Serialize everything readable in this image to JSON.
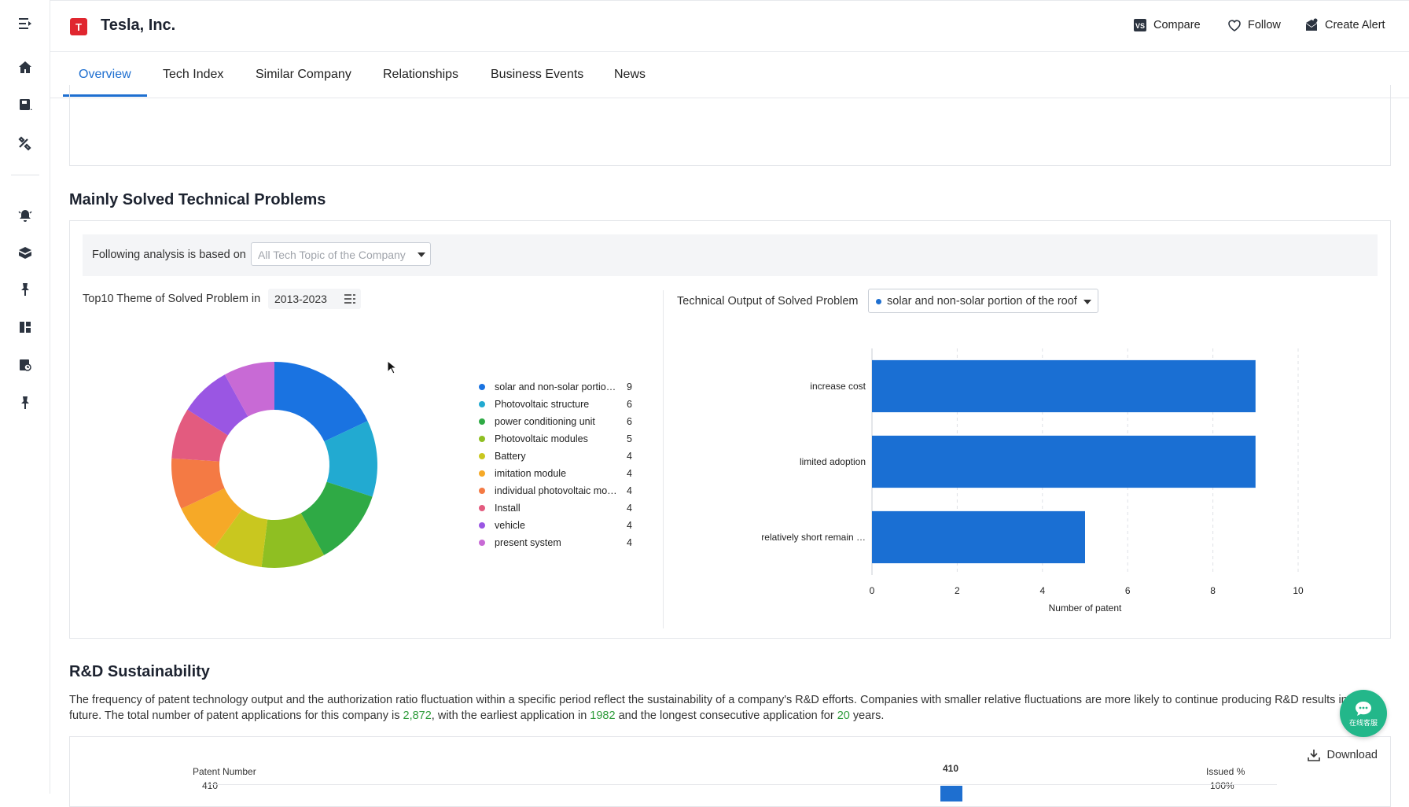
{
  "header": {
    "logo_letter": "T",
    "company": "Tesla, Inc.",
    "compare": "Compare",
    "follow": "Follow",
    "create_alert": "Create Alert"
  },
  "tabs": [
    {
      "label": "Overview",
      "active": true
    },
    {
      "label": "Tech Index"
    },
    {
      "label": "Similar Company"
    },
    {
      "label": "Relationships"
    },
    {
      "label": "Business Events"
    },
    {
      "label": "News"
    }
  ],
  "sidebar": {
    "icons": [
      "menu-collapse-icon",
      "home-icon",
      "book-icon",
      "tools-icon",
      "alert-bell-icon",
      "package-icon",
      "pin-icon",
      "dashboard-icon",
      "report-icon",
      "pin-icon"
    ]
  },
  "problems_section": {
    "title": "Mainly Solved Technical Problems",
    "filter_label": "Following analysis is based on",
    "filter_placeholder": "All Tech Topic of the Company",
    "pie_title": "Top10 Theme of Solved Problem in",
    "year_range": "2013-2023",
    "bar_title": "Technical Output of Solved Problem",
    "topic_selected": "solar and non-solar portion of the roof"
  },
  "rd_section": {
    "title": "R&D Sustainability",
    "desc_part1": "The frequency of patent technology output and the authorization ratio fluctuation within a specific period reflect the sustainability of a company's R&D efforts. Companies with smaller relative fluctuations are more likely to continue producing R&D results in the future. The total number of patent applications for this company is ",
    "total_patents": "2,872",
    "desc_part2": ", with the earliest application in ",
    "earliest_year": "1982",
    "desc_part3": " and the longest consecutive application for ",
    "consecutive_years": "20",
    "desc_part4": " years.",
    "download": "Download",
    "left_axis_title": "Patent Number",
    "left_axis_top": "410",
    "right_axis_title": "Issued %",
    "right_axis_top": "100%",
    "peak_label": "410"
  },
  "chat": {
    "label": "在线客服"
  },
  "colors": {
    "accent": "#1e6fd0",
    "highlight": "#2d9b3a",
    "brand": "#e0262f"
  },
  "chart_data": [
    {
      "type": "pie",
      "title": "Top10 Theme of Solved Problem in 2013-2023",
      "legend_position": "right",
      "categories": [
        "solar and non-solar portion…",
        "Photovoltaic structure",
        "power conditioning unit",
        "Photovoltaic modules",
        "Battery",
        "imitation module",
        "individual photovoltaic mod…",
        "Install",
        "vehicle",
        "present system"
      ],
      "values": [
        9,
        6,
        6,
        5,
        4,
        4,
        4,
        4,
        4,
        4
      ],
      "colors": [
        "#1a73e1",
        "#22aad1",
        "#2faa45",
        "#8fbf22",
        "#c9c71f",
        "#f6a927",
        "#f47a44",
        "#e35b7f",
        "#9a56e3",
        "#c86ad5"
      ]
    },
    {
      "type": "bar",
      "orientation": "horizontal",
      "title": "Technical Output of Solved Problem",
      "categories": [
        "increase cost",
        "limited adoption",
        "relatively short remain …"
      ],
      "values": [
        9,
        9,
        5
      ],
      "xlabel": "Number of patent",
      "ylabel": "",
      "xlim": [
        0,
        10
      ],
      "xticks": [
        "0",
        "2",
        "4",
        "6",
        "8",
        "10"
      ],
      "grid": true,
      "color": "#1a6fd3"
    }
  ]
}
